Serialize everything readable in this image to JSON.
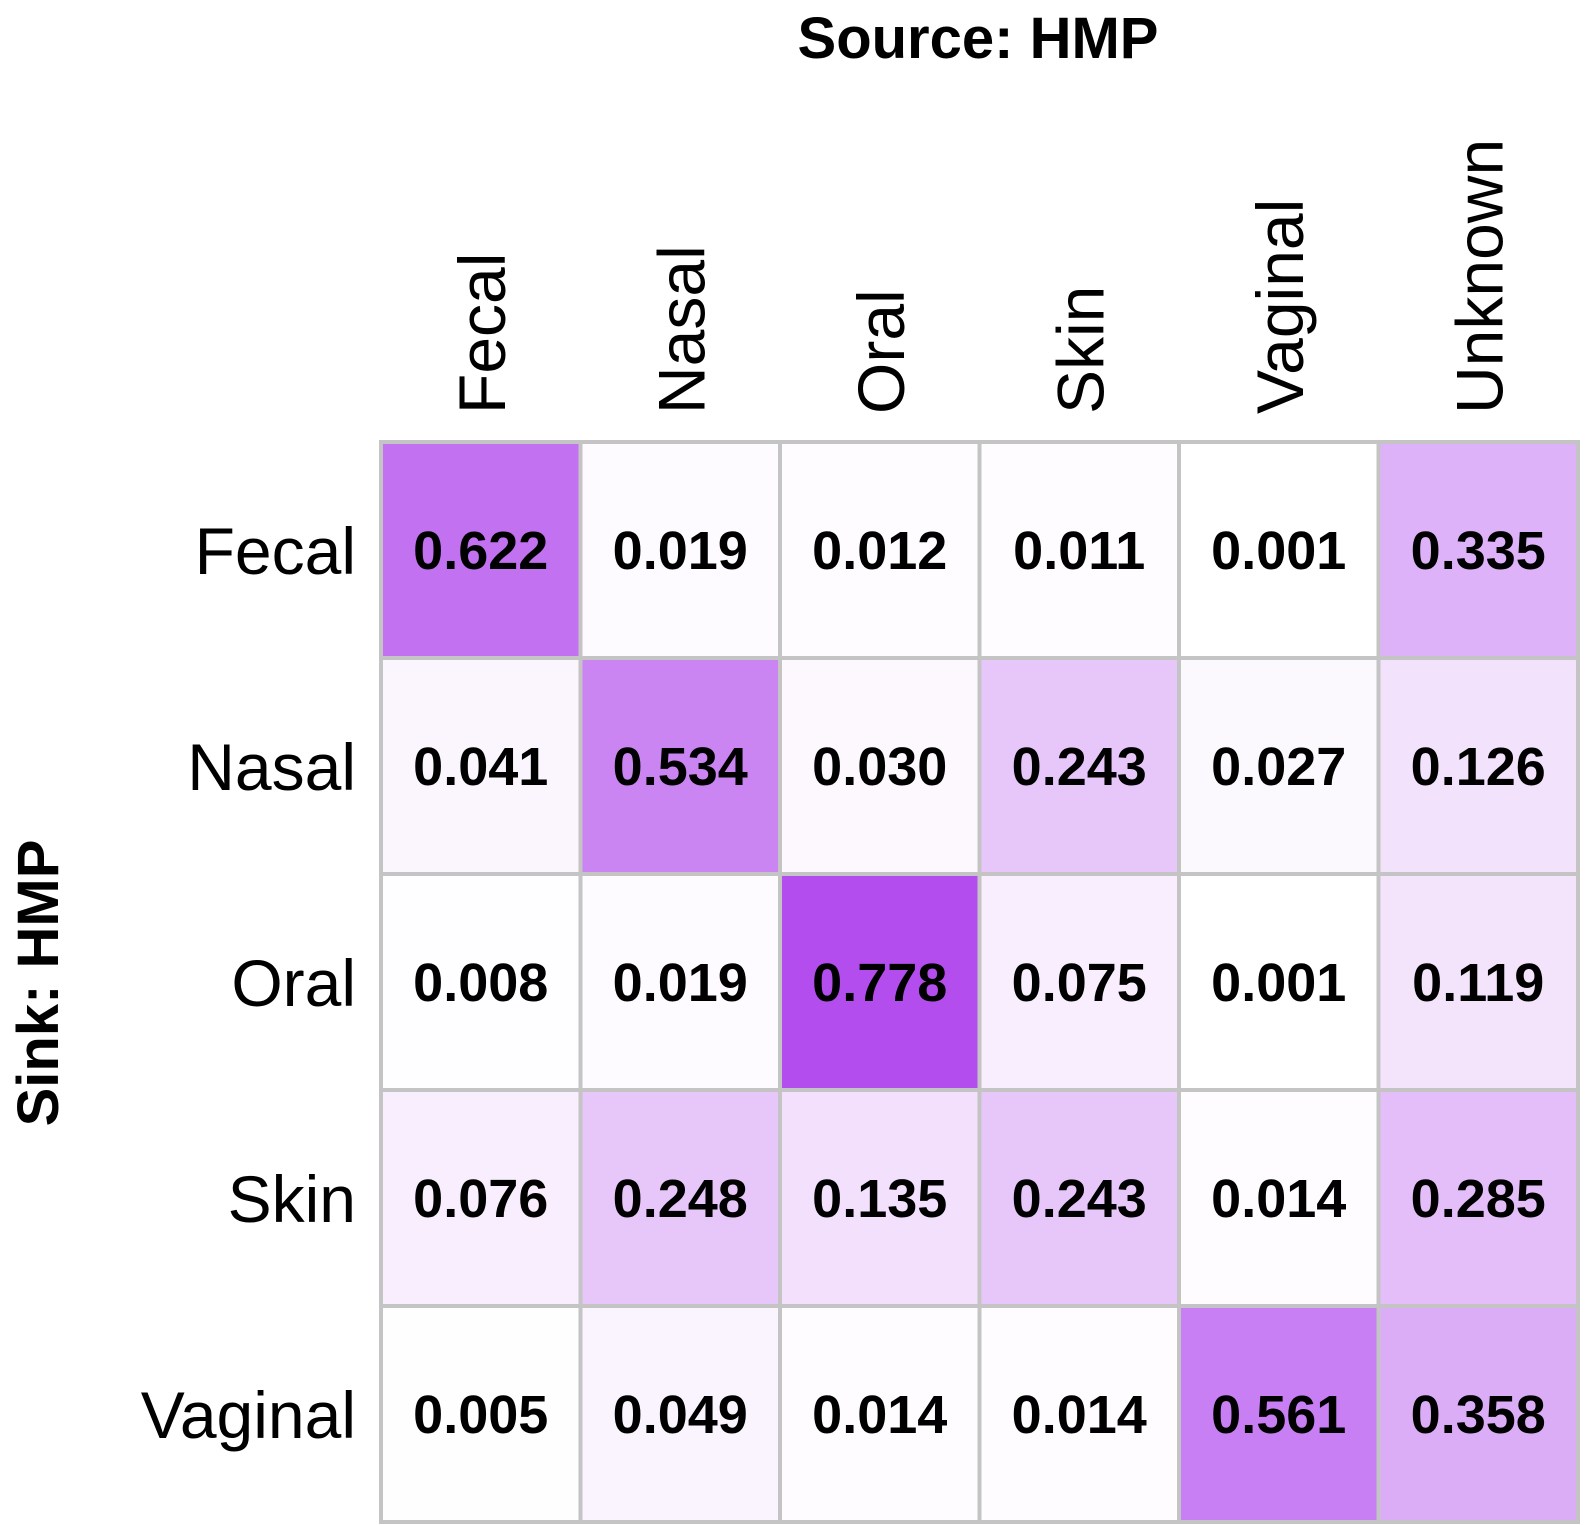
{
  "chart_data": {
    "type": "heatmap",
    "title": "Source: HMP",
    "xlabel": "Source: HMP",
    "ylabel": "Sink: HMP",
    "x_categories": [
      "Fecal",
      "Nasal",
      "Oral",
      "Skin",
      "Vaginal",
      "Unknown"
    ],
    "y_categories": [
      "Fecal",
      "Nasal",
      "Oral",
      "Skin",
      "Vaginal"
    ],
    "values": [
      [
        0.622,
        0.019,
        0.012,
        0.011,
        0.001,
        0.335
      ],
      [
        0.041,
        0.534,
        0.03,
        0.243,
        0.027,
        0.126
      ],
      [
        0.008,
        0.019,
        0.778,
        0.075,
        0.001,
        0.119
      ],
      [
        0.076,
        0.248,
        0.135,
        0.243,
        0.014,
        0.285
      ],
      [
        0.005,
        0.049,
        0.014,
        0.014,
        0.561,
        0.358
      ]
    ],
    "value_labels": [
      [
        "0.622",
        "0.019",
        "0.012",
        "0.011",
        "0.001",
        "0.335"
      ],
      [
        "0.041",
        "0.534",
        "0.030",
        "0.243",
        "0.027",
        "0.126"
      ],
      [
        "0.008",
        "0.019",
        "0.778",
        "0.075",
        "0.001",
        "0.119"
      ],
      [
        "0.076",
        "0.248",
        "0.135",
        "0.243",
        "0.014",
        "0.285"
      ],
      [
        "0.005",
        "0.049",
        "0.014",
        "0.014",
        "0.561",
        "0.358"
      ]
    ],
    "color_low": "#ffffff",
    "color_high": "#b34dee",
    "grid_color": "#c4c4c4"
  }
}
